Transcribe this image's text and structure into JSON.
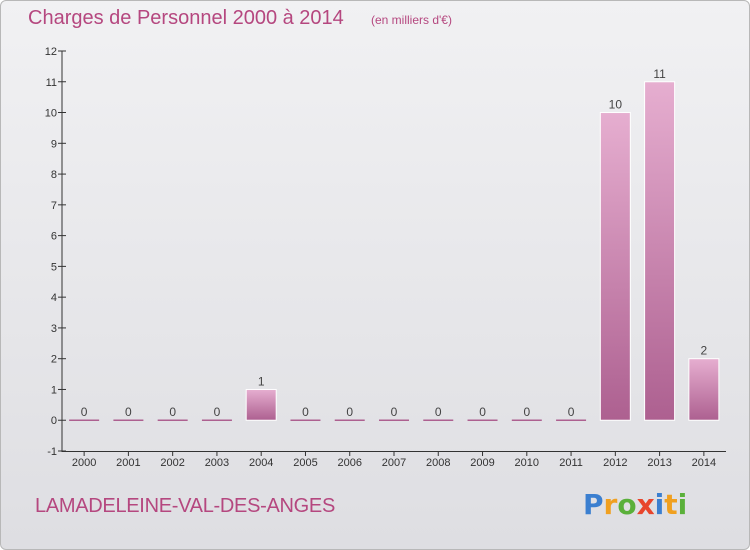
{
  "title": "Charges de Personnel 2000 à 2014",
  "unit_note": "(en milliers d'€)",
  "commune": "LAMADELEINE-VAL-DES-ANGES",
  "logo": {
    "text": "Proxiti",
    "letters": [
      {
        "ch": "P",
        "color": "#3b7fd0"
      },
      {
        "ch": "r",
        "color": "#f0a020"
      },
      {
        "ch": "o",
        "color": "#5ab03a"
      },
      {
        "ch": "x",
        "color": "#e8452c"
      },
      {
        "ch": "i",
        "color": "#3b7fd0"
      },
      {
        "ch": "t",
        "color": "#f0a020"
      },
      {
        "ch": "i",
        "color": "#5ab03a"
      }
    ]
  },
  "colors": {
    "title": "#b5477f",
    "bar_light": "#e6aed0",
    "bar_dark": "#ad6090"
  },
  "chart_data": {
    "type": "bar",
    "title": "Charges de Personnel 2000 à 2014",
    "subtitle": "(en milliers d'€)",
    "xlabel": "",
    "ylabel": "",
    "categories": [
      "2000",
      "2001",
      "2002",
      "2003",
      "2004",
      "2005",
      "2006",
      "2007",
      "2008",
      "2009",
      "2010",
      "2011",
      "2012",
      "2013",
      "2014"
    ],
    "values": [
      0,
      0,
      0,
      0,
      1,
      0,
      0,
      0,
      0,
      0,
      0,
      0,
      10,
      11,
      2
    ],
    "ylim": [
      -1,
      12
    ],
    "yticks": [
      -1,
      0,
      1,
      2,
      3,
      4,
      5,
      6,
      7,
      8,
      9,
      10,
      11,
      12
    ],
    "grid": false,
    "legend": "none"
  }
}
